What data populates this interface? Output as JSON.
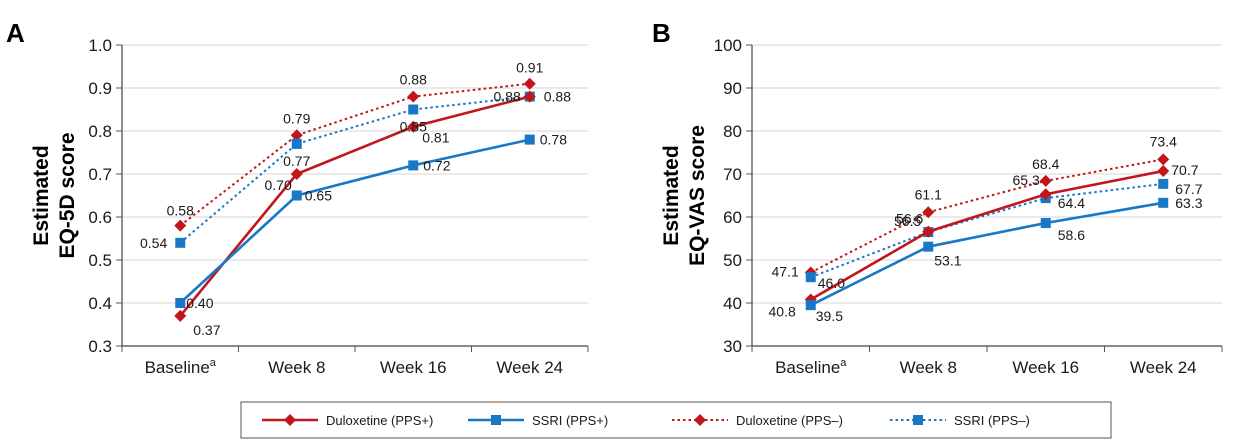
{
  "legend": {
    "items": [
      {
        "label": "Duloxetine (PPS+)",
        "color": "#c0161c",
        "dashed": false,
        "marker": "diamond"
      },
      {
        "label": "SSRI (PPS+)",
        "color": "#1878c8",
        "dashed": false,
        "marker": "square"
      },
      {
        "label": "Duloxetine (PPS–)",
        "color": "#c0161c",
        "dashed": true,
        "marker": "diamond"
      },
      {
        "label": "SSRI (PPS–)",
        "color": "#1878c8",
        "dashed": true,
        "marker": "square"
      }
    ]
  },
  "chart_data": [
    {
      "type": "line",
      "panel": "A",
      "ylabel_line1": "Estimated",
      "ylabel_line2": "EQ-5D score",
      "categories": [
        "Baseline",
        "Week 8",
        "Week 16",
        "Week 24"
      ],
      "category_superscripts": [
        "a",
        "",
        "",
        ""
      ],
      "ylim": [
        0.3,
        1.0
      ],
      "yticks": [
        "0.3",
        "0.4",
        "0.5",
        "0.6",
        "0.7",
        "0.8",
        "0.9",
        "1.0"
      ],
      "grid": true,
      "series": [
        {
          "name": "Duloxetine (PPS+)",
          "values": [
            0.37,
            0.7,
            0.81,
            0.88
          ],
          "labels": [
            "0.37",
            "0.70",
            "0.81",
            "0.88"
          ],
          "color": "#c0161c",
          "dashed": false,
          "marker": "diamond"
        },
        {
          "name": "SSRI (PPS+)",
          "values": [
            0.4,
            0.65,
            0.72,
            0.78
          ],
          "labels": [
            "0.40",
            "0.65",
            "0.72",
            "0.78"
          ],
          "color": "#1878c8",
          "dashed": false,
          "marker": "square"
        },
        {
          "name": "Duloxetine (PPS–)",
          "values": [
            0.58,
            0.79,
            0.88,
            0.91
          ],
          "labels": [
            "0.58",
            "0.79",
            "0.88",
            "0.91"
          ],
          "color": "#c0161c",
          "dashed": true,
          "marker": "diamond"
        },
        {
          "name": "SSRI (PPS–)",
          "values": [
            0.54,
            0.77,
            0.85,
            0.88
          ],
          "labels": [
            "0.54",
            "0.77",
            "0.85",
            "0.88"
          ],
          "color": "#1878c8",
          "dashed": true,
          "marker": "square"
        }
      ]
    },
    {
      "type": "line",
      "panel": "B",
      "ylabel_line1": "Estimated",
      "ylabel_line2": "EQ-VAS score",
      "categories": [
        "Baseline",
        "Week 8",
        "Week 16",
        "Week 24"
      ],
      "category_superscripts": [
        "a",
        "",
        "",
        ""
      ],
      "ylim": [
        30,
        100
      ],
      "yticks": [
        "30",
        "40",
        "50",
        "60",
        "70",
        "80",
        "90",
        "100"
      ],
      "grid": true,
      "series": [
        {
          "name": "Duloxetine (PPS+)",
          "values": [
            40.8,
            56.6,
            65.3,
            70.7
          ],
          "labels": [
            "40.8",
            "56.6",
            "65.3",
            "70.7"
          ],
          "color": "#c0161c",
          "dashed": false,
          "marker": "diamond"
        },
        {
          "name": "SSRI (PPS+)",
          "values": [
            39.5,
            53.1,
            58.6,
            63.3
          ],
          "labels": [
            "39.5",
            "53.1",
            "58.6",
            "63.3"
          ],
          "color": "#1878c8",
          "dashed": false,
          "marker": "square"
        },
        {
          "name": "Duloxetine (PPS–)",
          "values": [
            47.1,
            61.1,
            68.4,
            73.4
          ],
          "labels": [
            "47.1",
            "61.1",
            "68.4",
            "73.4"
          ],
          "color": "#c0161c",
          "dashed": true,
          "marker": "diamond"
        },
        {
          "name": "SSRI (PPS–)",
          "values": [
            46.0,
            56.5,
            64.4,
            67.7
          ],
          "labels": [
            "46.0",
            "56.5",
            "64.4",
            "67.7"
          ],
          "color": "#1878c8",
          "dashed": true,
          "marker": "square"
        }
      ]
    }
  ]
}
